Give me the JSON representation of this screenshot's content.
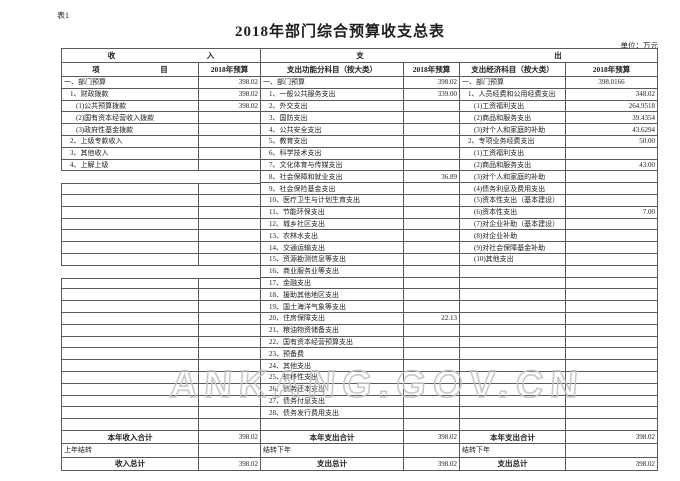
{
  "page": {
    "table_label": "表1",
    "title": "2018年部门综合预算收支总表",
    "unit_note": "单位：万元",
    "watermark": "ANKANG.GOV.CN"
  },
  "header": {
    "income_group": "收入",
    "expenditure_group": "支出",
    "item_col": "项目",
    "budget_col": "2018年预算",
    "function_col": "支出功能分科目（按大类）",
    "economic_col": "支出经济科目（按大类）"
  },
  "rows": [
    {
      "l": "一、部门预算",
      "li": 0,
      "lv": "398.02",
      "lmode": "cell",
      "m": "一、部门预算",
      "mi": 0,
      "mv": "398.02",
      "r": "一、部门预算",
      "ri": 0,
      "rv": "398.0166",
      "rvc": true
    },
    {
      "l": "1、财政拨款",
      "li": 1,
      "lv": "398.02",
      "lmode": "cell",
      "m": "1、一般公共服务支出",
      "mi": 1,
      "mv": "339.00",
      "r": "1、人员经费和公用经费支出",
      "ri": 1,
      "rv": "348.02"
    },
    {
      "l": "(1)公共预算拨款",
      "li": 2,
      "lv": "398.02",
      "lmode": "cell",
      "m": "2、外交支出",
      "mi": 1,
      "mv": "",
      "r": "(1)工资福利支出",
      "ri": 2,
      "rv": "264.9518"
    },
    {
      "l": "(2)国有资本经营收入拨款",
      "li": 2,
      "lv": "",
      "lmode": "cell",
      "m": "3、国防支出",
      "mi": 1,
      "mv": "",
      "r": "(2)商品和服务支出",
      "ri": 2,
      "rv": "39.4354"
    },
    {
      "l": "(3)政府性基金拨款",
      "li": 2,
      "lv": "",
      "lmode": "cell",
      "m": "4、公共安全支出",
      "mi": 1,
      "mv": "",
      "r": "(3)对个人和家庭的补助",
      "ri": 2,
      "rv": "43.6294"
    },
    {
      "l": "2、上级专款收入",
      "li": 1,
      "lv": "",
      "lmode": "cell",
      "m": "5、教育支出",
      "mi": 1,
      "mv": "",
      "r": "2、专项业务经费支出",
      "ri": 1,
      "rv": "50.00"
    },
    {
      "l": "3、其他收入",
      "li": 1,
      "lv": "",
      "lmode": "cell",
      "m": "6、科学技术支出",
      "mi": 1,
      "mv": "",
      "r": "(1)工资福利支出",
      "ri": 2,
      "rv": ""
    },
    {
      "l": "4、上解上级",
      "li": 1,
      "lv": "",
      "lmode": "cell",
      "m": "7、文化体育与传媒支出",
      "mi": 1,
      "mv": "",
      "r": "(2)商品和服务支出",
      "ri": 2,
      "rv": "43.00"
    },
    {
      "l": "",
      "li": 0,
      "lv": "",
      "lmode": "gap",
      "m": "8、社会保障和就业支出",
      "mi": 1,
      "mv": "36.89",
      "r": "(3)对个人和家庭的补助",
      "ri": 2,
      "rv": ""
    },
    {
      "l": "",
      "li": 0,
      "lv": "",
      "lmode": "top",
      "m": "9、社会保险基金支出",
      "mi": 1,
      "mv": "",
      "r": "(4)债务利息及费用支出",
      "ri": 2,
      "rv": ""
    },
    {
      "l": "",
      "li": 0,
      "lv": "",
      "lmode": "cell",
      "m": "10、医疗卫生与计划生育支出",
      "mi": 1,
      "mv": "",
      "r": "(5)资本性支出（基本建设）",
      "ri": 2,
      "rv": ""
    },
    {
      "l": "",
      "li": 0,
      "lv": "",
      "lmode": "cell",
      "m": "11、节能环保支出",
      "mi": 1,
      "mv": "",
      "r": "(6)资本性支出",
      "ri": 2,
      "rv": "7.00"
    },
    {
      "l": "",
      "li": 0,
      "lv": "",
      "lmode": "cell",
      "m": "12、城乡社区支出",
      "mi": 1,
      "mv": "",
      "r": "(7)对企业补助（基本建设）",
      "ri": 2,
      "rv": ""
    },
    {
      "l": "",
      "li": 0,
      "lv": "",
      "lmode": "cell",
      "m": "13、农林水支出",
      "mi": 1,
      "mv": "",
      "r": "(8)对企业补助",
      "ri": 2,
      "rv": ""
    },
    {
      "l": "",
      "li": 0,
      "lv": "",
      "lmode": "cell",
      "m": "14、交通运输支出",
      "mi": 1,
      "mv": "",
      "r": "(9)对社会保障基金补助",
      "ri": 2,
      "rv": ""
    },
    {
      "l": "",
      "li": 0,
      "lv": "",
      "lmode": "cell",
      "m": "15、资源勘测信息等支出",
      "mi": 1,
      "mv": "",
      "r": "(10)其他支出",
      "ri": 2,
      "rv": ""
    },
    {
      "l": "",
      "li": 0,
      "lv": "",
      "lmode": "gap",
      "m": "16、商业服务业等支出",
      "mi": 1,
      "mv": "",
      "r": "",
      "ri": 0,
      "rv": ""
    },
    {
      "l": "",
      "li": 0,
      "lv": "",
      "lmode": "top",
      "m": "17、金融支出",
      "mi": 1,
      "mv": "",
      "r": "",
      "ri": 0,
      "rv": ""
    },
    {
      "l": "",
      "li": 0,
      "lv": "",
      "lmode": "cell",
      "m": "18、援助其他地区支出",
      "mi": 1,
      "mv": "",
      "r": "",
      "ri": 0,
      "rv": ""
    },
    {
      "l": "",
      "li": 0,
      "lv": "",
      "lmode": "cell",
      "m": "19、国土海洋气象等支出",
      "mi": 1,
      "mv": "",
      "r": "",
      "ri": 0,
      "rv": ""
    },
    {
      "l": "",
      "li": 0,
      "lv": "",
      "lmode": "cell",
      "m": "20、住房保障支出",
      "mi": 1,
      "mv": "22.13",
      "r": "",
      "ri": 0,
      "rv": ""
    },
    {
      "l": "",
      "li": 0,
      "lv": "",
      "lmode": "cell",
      "m": "21、粮油物资储备支出",
      "mi": 1,
      "mv": "",
      "r": "",
      "ri": 0,
      "rv": ""
    },
    {
      "l": "",
      "li": 0,
      "lv": "",
      "lmode": "cell",
      "m": "22、国有资本经营预算支出",
      "mi": 1,
      "mv": "",
      "r": "",
      "ri": 0,
      "rv": ""
    },
    {
      "l": "",
      "li": 0,
      "lv": "",
      "lmode": "cell",
      "m": "23、预备费",
      "mi": 1,
      "mv": "",
      "r": "",
      "ri": 0,
      "rv": ""
    },
    {
      "l": "",
      "li": 0,
      "lv": "",
      "lmode": "cell",
      "m": "24、其他支出",
      "mi": 1,
      "mv": "",
      "r": "",
      "ri": 0,
      "rv": ""
    },
    {
      "l": "",
      "li": 0,
      "lv": "",
      "lmode": "cell",
      "m": "25、转移性支出",
      "mi": 1,
      "mv": "",
      "r": "",
      "ri": 0,
      "rv": ""
    },
    {
      "l": "",
      "li": 0,
      "lv": "",
      "lmode": "cell",
      "m": "26、债务还本支出",
      "mi": 1,
      "mv": "",
      "r": "",
      "ri": 0,
      "rv": ""
    },
    {
      "l": "",
      "li": 0,
      "lv": "",
      "lmode": "cell",
      "m": "27、债务付息支出",
      "mi": 1,
      "mv": "",
      "r": "",
      "ri": 0,
      "rv": ""
    },
    {
      "l": "",
      "li": 0,
      "lv": "",
      "lmode": "cell",
      "m": "28、债务发行费用支出",
      "mi": 1,
      "mv": "",
      "r": "",
      "ri": 0,
      "rv": ""
    },
    {
      "l": "",
      "li": 0,
      "lv": "",
      "lmode": "cell",
      "m": "",
      "mi": 0,
      "mv": "",
      "r": "",
      "ri": 0,
      "rv": ""
    }
  ],
  "footer_rows": [
    {
      "c1": "本年收入合计",
      "s1": "total",
      "v1": "398.02",
      "c2": "本年支出合计",
      "s2": "total",
      "v2": "398.02",
      "c3": "本年支出合计",
      "s3": "total",
      "v3": "398.02"
    },
    {
      "c1": "上年结转",
      "s1": "plain",
      "v1": "",
      "c2": "结转下年",
      "s2": "plain",
      "v2": "",
      "c3": "结转下年",
      "s3": "plain",
      "v3": ""
    },
    {
      "c1": "收入总计",
      "s1": "total",
      "v1": "398.02",
      "c2": "支出总计",
      "s2": "total",
      "v2": "398.02",
      "c3": "支出总计",
      "s3": "total",
      "v3": "398.02"
    }
  ]
}
